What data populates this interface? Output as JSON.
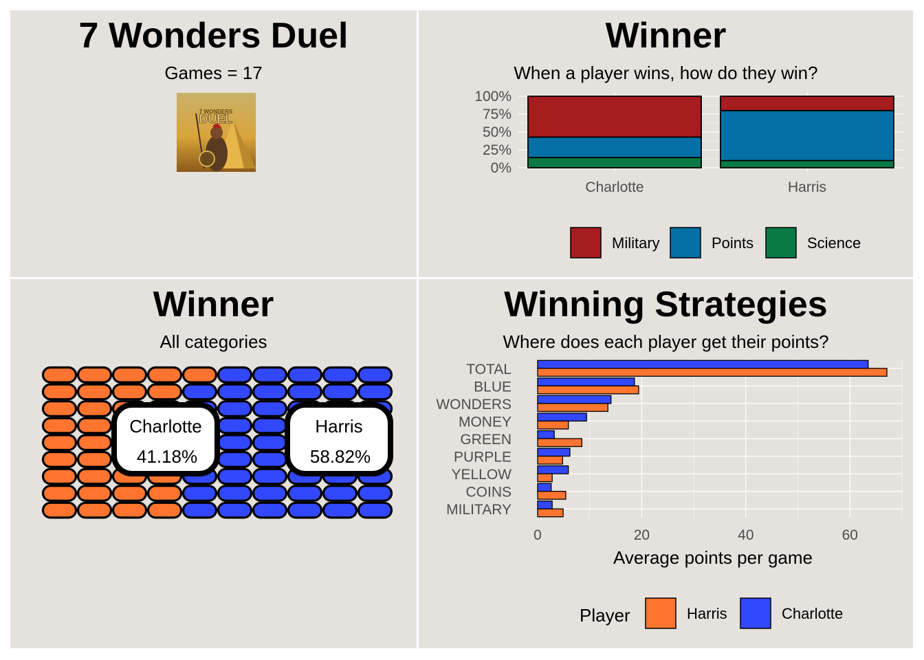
{
  "title_panel": {
    "title": "7 Wonders Duel",
    "games_label": "Games = 17",
    "art_text": "DUEL",
    "art_logo_text": "7 WONDERS"
  },
  "colors": {
    "panel_bg": "#e5e1dd",
    "military": "#a61c1f",
    "points": "#0570a5",
    "science": "#0a7a45",
    "harris": "#ff7530",
    "charlotte": "#3248ff"
  },
  "chart_data": [
    {
      "type": "bar",
      "stacked": true,
      "title": "Winner",
      "subtitle": "When a player wins, how do they win?",
      "categories": [
        "Charlotte",
        "Harris"
      ],
      "series": [
        {
          "name": "Military",
          "color": "#a61c1f",
          "values": [
            57.1,
            20.0
          ]
        },
        {
          "name": "Points",
          "color": "#0570a5",
          "values": [
            28.6,
            70.0
          ]
        },
        {
          "name": "Science",
          "color": "#0a7a45",
          "values": [
            14.3,
            10.0
          ]
        }
      ],
      "ylim": [
        0,
        100
      ],
      "yticks": [
        "0%",
        "25%",
        "50%",
        "75%",
        "100%"
      ],
      "legend": [
        "Military",
        "Points",
        "Science"
      ],
      "legend_position": "bottom",
      "grid": true
    },
    {
      "type": "waffle",
      "title": "Winner",
      "subtitle": "All categories",
      "groups": [
        {
          "name": "Charlotte",
          "percent_label": "41.18%",
          "value": 41.18,
          "color": "#ff7530"
        },
        {
          "name": "Harris",
          "percent_label": "58.82%",
          "value": 58.82,
          "color": "#3248ff"
        }
      ],
      "rows": 9,
      "cols": 10
    },
    {
      "type": "bar",
      "orientation": "horizontal",
      "title": "Winning Strategies",
      "subtitle": "Where does each player get their points?",
      "categories": [
        "TOTAL",
        "BLUE",
        "WONDERS",
        "MONEY",
        "GREEN",
        "PURPLE",
        "YELLOW",
        "COINS",
        "MILITARY"
      ],
      "series": [
        {
          "name": "Charlotte",
          "color": "#3248ff",
          "values": [
            63.5,
            18.6,
            14.1,
            9.4,
            3.2,
            6.2,
            5.9,
            2.6,
            2.8
          ]
        },
        {
          "name": "Harris",
          "color": "#ff7530",
          "values": [
            67.1,
            19.4,
            13.5,
            5.9,
            8.5,
            4.8,
            2.8,
            5.4,
            4.9
          ]
        }
      ],
      "xlabel": "Average points per game",
      "xlim": [
        0,
        70
      ],
      "xticks": [
        "0",
        "20",
        "40",
        "60"
      ],
      "legend_title": "Player",
      "legend": [
        "Harris",
        "Charlotte"
      ],
      "legend_position": "bottom",
      "grid": true
    }
  ]
}
